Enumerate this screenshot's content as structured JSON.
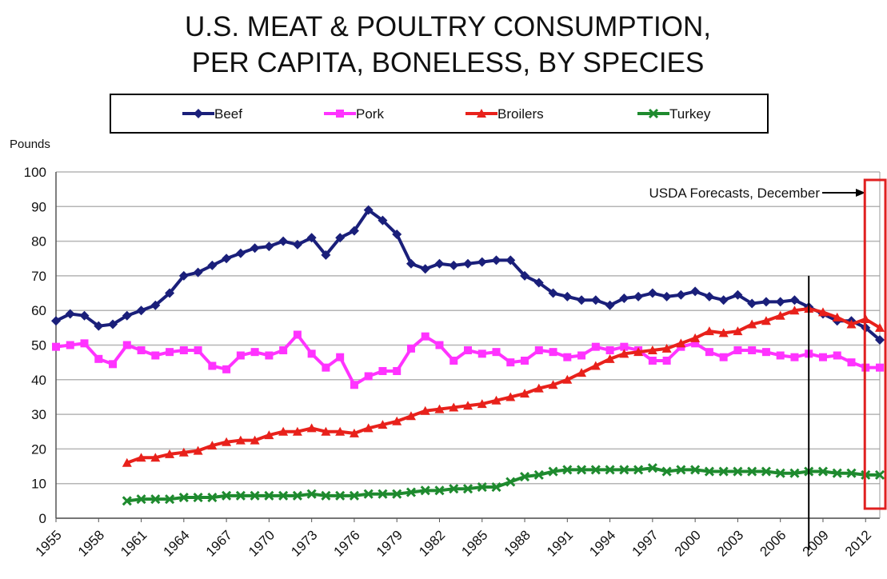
{
  "chart_data": {
    "type": "line",
    "title": [
      "U.S. MEAT & POULTRY CONSUMPTION,",
      "PER CAPITA, BONELESS, BY SPECIES"
    ],
    "ylabel": "Pounds",
    "xlabel": "",
    "ylim": [
      0,
      100
    ],
    "yticks": [
      0,
      10,
      20,
      30,
      40,
      50,
      60,
      70,
      80,
      90,
      100
    ],
    "xlim": [
      1955,
      2013
    ],
    "xticks": [
      "1955",
      "1958",
      "1961",
      "1964",
      "1967",
      "1970",
      "1973",
      "1976",
      "1979",
      "1982",
      "1985",
      "1988",
      "1991",
      "1994",
      "1997",
      "2000",
      "2003",
      "2006",
      "2009",
      "2012"
    ],
    "grid": true,
    "legend_position": "top",
    "annotation": "USDA Forecasts, December",
    "forecast_divider_year": 2008,
    "forecast_box_years": [
      2012,
      2013
    ],
    "series": [
      {
        "name": "Beef",
        "color": "#1a1f7a",
        "marker": "diamond",
        "x": [
          1955,
          1956,
          1957,
          1958,
          1959,
          1960,
          1961,
          1962,
          1963,
          1964,
          1965,
          1966,
          1967,
          1968,
          1969,
          1970,
          1971,
          1972,
          1973,
          1974,
          1975,
          1976,
          1977,
          1978,
          1979,
          1980,
          1981,
          1982,
          1983,
          1984,
          1985,
          1986,
          1987,
          1988,
          1989,
          1990,
          1991,
          1992,
          1993,
          1994,
          1995,
          1996,
          1997,
          1998,
          1999,
          2000,
          2001,
          2002,
          2003,
          2004,
          2005,
          2006,
          2007,
          2008,
          2009,
          2010,
          2011,
          2012,
          2013
        ],
        "values": [
          57,
          59,
          58.5,
          55.5,
          56,
          58.5,
          60,
          61.5,
          65,
          70,
          71,
          73,
          75,
          76.5,
          78,
          78.5,
          80,
          79,
          81,
          76,
          81,
          83,
          89,
          86,
          82,
          73.5,
          72,
          73.5,
          73,
          73.5,
          74,
          74.5,
          74.5,
          70,
          68,
          65,
          64,
          63,
          63,
          61.5,
          63.5,
          64,
          65,
          64,
          64.5,
          65.5,
          64,
          63,
          64.5,
          62,
          62.5,
          62.5,
          63,
          61,
          59,
          57,
          57,
          55,
          51.5
        ]
      },
      {
        "name": "Pork",
        "color": "#ff33ff",
        "marker": "square",
        "x": [
          1955,
          1956,
          1957,
          1958,
          1959,
          1960,
          1961,
          1962,
          1963,
          1964,
          1965,
          1966,
          1967,
          1968,
          1969,
          1970,
          1971,
          1972,
          1973,
          1974,
          1975,
          1976,
          1977,
          1978,
          1979,
          1980,
          1981,
          1982,
          1983,
          1984,
          1985,
          1986,
          1987,
          1988,
          1989,
          1990,
          1991,
          1992,
          1993,
          1994,
          1995,
          1996,
          1997,
          1998,
          1999,
          2000,
          2001,
          2002,
          2003,
          2004,
          2005,
          2006,
          2007,
          2008,
          2009,
          2010,
          2011,
          2012,
          2013
        ],
        "values": [
          49.5,
          50,
          50.5,
          46,
          44.5,
          50,
          48.5,
          47,
          48,
          48.5,
          48.5,
          44,
          43,
          47,
          48,
          47,
          48.5,
          53,
          47.5,
          43.5,
          46.5,
          38.5,
          41,
          42.5,
          42.5,
          49,
          52.5,
          50,
          45.5,
          48.5,
          47.5,
          48,
          45,
          45.5,
          48.5,
          48,
          46.5,
          47,
          49.5,
          48.5,
          49.5,
          48.5,
          45.5,
          45.5,
          49.5,
          50.5,
          48,
          46.5,
          48.5,
          48.5,
          48,
          47,
          46.5,
          47.5,
          46.5,
          47,
          45,
          43.5,
          43.5
        ]
      },
      {
        "name": "Broilers",
        "color": "#e8211b",
        "marker": "triangle",
        "x": [
          1960,
          1961,
          1962,
          1963,
          1964,
          1965,
          1966,
          1967,
          1968,
          1969,
          1970,
          1971,
          1972,
          1973,
          1974,
          1975,
          1976,
          1977,
          1978,
          1979,
          1980,
          1981,
          1982,
          1983,
          1984,
          1985,
          1986,
          1987,
          1988,
          1989,
          1990,
          1991,
          1992,
          1993,
          1994,
          1995,
          1996,
          1997,
          1998,
          1999,
          2000,
          2001,
          2002,
          2003,
          2004,
          2005,
          2006,
          2007,
          2008,
          2009,
          2010,
          2011,
          2012,
          2013
        ],
        "values": [
          16,
          17.5,
          17.5,
          18.5,
          19,
          19.5,
          21,
          22,
          22.5,
          22.5,
          24,
          25,
          25,
          26,
          25,
          25,
          24.5,
          26,
          27,
          28,
          29.5,
          31,
          31.5,
          32,
          32.5,
          33,
          34,
          35,
          36,
          37.5,
          38.5,
          40,
          42,
          44,
          46,
          47.5,
          48,
          48.5,
          49,
          50.5,
          52,
          54,
          53.5,
          54,
          56,
          57,
          58.5,
          60,
          60.5,
          59.5,
          58,
          56,
          57.5,
          55
        ]
      },
      {
        "name": "Turkey",
        "color": "#1e8a2e",
        "marker": "x",
        "x": [
          1960,
          1961,
          1962,
          1963,
          1964,
          1965,
          1966,
          1967,
          1968,
          1969,
          1970,
          1971,
          1972,
          1973,
          1974,
          1975,
          1976,
          1977,
          1978,
          1979,
          1980,
          1981,
          1982,
          1983,
          1984,
          1985,
          1986,
          1987,
          1988,
          1989,
          1990,
          1991,
          1992,
          1993,
          1994,
          1995,
          1996,
          1997,
          1998,
          1999,
          2000,
          2001,
          2002,
          2003,
          2004,
          2005,
          2006,
          2007,
          2008,
          2009,
          2010,
          2011,
          2012,
          2013
        ],
        "values": [
          5,
          5.5,
          5.5,
          5.5,
          6,
          6,
          6,
          6.5,
          6.5,
          6.5,
          6.5,
          6.5,
          6.5,
          7,
          6.5,
          6.5,
          6.5,
          7,
          7,
          7,
          7.5,
          8,
          8,
          8.5,
          8.5,
          9,
          9,
          10.5,
          12,
          12.5,
          13.5,
          14,
          14,
          14,
          14,
          14,
          14,
          14.5,
          13.5,
          14,
          14,
          13.5,
          13.5,
          13.5,
          13.5,
          13.5,
          13,
          13,
          13.5,
          13.5,
          13,
          13,
          12.5,
          12.5
        ]
      }
    ]
  }
}
